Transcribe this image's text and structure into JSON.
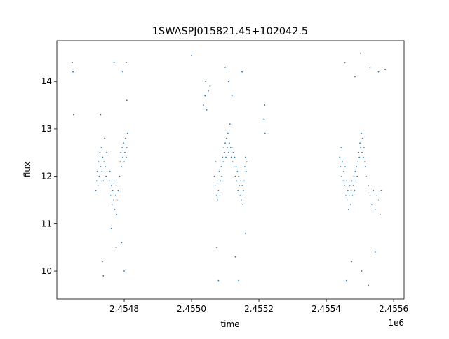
{
  "chart_data": {
    "type": "scatter",
    "title": "1SWASPJ015821.45+102042.5",
    "xlabel": "time",
    "ylabel": "flux",
    "x_offset_label": "1e6",
    "color": "#1f77b4",
    "xlim": [
      2454600,
      2455631
    ],
    "ylim": [
      9.41,
      14.86
    ],
    "xticks": [
      {
        "value": 2454800,
        "label": "2.4548"
      },
      {
        "value": 2455000,
        "label": "2.4550"
      },
      {
        "value": 2455200,
        "label": "2.4552"
      },
      {
        "value": 2455400,
        "label": "2.4554"
      },
      {
        "value": 2455600,
        "label": "2.4556"
      }
    ],
    "yticks": [
      10,
      11,
      12,
      13,
      14
    ],
    "x": [
      2454646,
      2454648,
      2454650,
      2454716,
      2454718,
      2454720,
      2454722,
      2454724,
      2454726,
      2454728,
      2454730,
      2454732,
      2454734,
      2454736,
      2454738,
      2454740,
      2454742,
      2454744,
      2454746,
      2454748,
      2454730,
      2454735,
      2454738,
      2454756,
      2454758,
      2454760,
      2454762,
      2454764,
      2454766,
      2454768,
      2454770,
      2454772,
      2454774,
      2454776,
      2454778,
      2454780,
      2454782,
      2454770,
      2454762,
      2454776,
      2454786,
      2454788,
      2454790,
      2454792,
      2454794,
      2454796,
      2454798,
      2454800,
      2454802,
      2454804,
      2454806,
      2454808,
      2454810,
      2454796,
      2454806,
      2454800,
      2454792,
      2454808,
      2455000,
      2455035,
      2455040,
      2455045,
      2455050,
      2455055,
      2455042,
      2455068,
      2455070,
      2455072,
      2455074,
      2455076,
      2455078,
      2455080,
      2455082,
      2455084,
      2455086,
      2455088,
      2455090,
      2455092,
      2455094,
      2455096,
      2455098,
      2455100,
      2455102,
      2455104,
      2455106,
      2455108,
      2455110,
      2455112,
      2455114,
      2455116,
      2455118,
      2455120,
      2455122,
      2455124,
      2455126,
      2455128,
      2455130,
      2455132,
      2455134,
      2455136,
      2455138,
      2455140,
      2455142,
      2455144,
      2455146,
      2455148,
      2455150,
      2455152,
      2455154,
      2455156,
      2455158,
      2455160,
      2455162,
      2455164,
      2455075,
      2455080,
      2455100,
      2455110,
      2455120,
      2455130,
      2455140,
      2455150,
      2455160,
      2455215,
      2455217,
      2455218,
      2455440,
      2455442,
      2455444,
      2455446,
      2455448,
      2455450,
      2455452,
      2455454,
      2455456,
      2455458,
      2455460,
      2455462,
      2455464,
      2455466,
      2455468,
      2455470,
      2455472,
      2455474,
      2455476,
      2455478,
      2455480,
      2455482,
      2455484,
      2455486,
      2455488,
      2455490,
      2455492,
      2455494,
      2455496,
      2455498,
      2455500,
      2455502,
      2455504,
      2455506,
      2455508,
      2455510,
      2455512,
      2455514,
      2455516,
      2455518,
      2455525,
      2455530,
      2455535,
      2455540,
      2455545,
      2455550,
      2455555,
      2455560,
      2455563,
      2455455,
      2455460,
      2455475,
      2455485,
      2455501,
      2455505,
      2455525,
      2455530,
      2455545,
      2455555,
      2455575
    ],
    "values": [
      14.4,
      14.2,
      13.3,
      11.7,
      11.9,
      12.1,
      11.8,
      12.3,
      12.0,
      12.5,
      12.2,
      12.6,
      12.1,
      12.4,
      11.9,
      12.3,
      12.8,
      12.2,
      12.0,
      12.5,
      13.3,
      10.2,
      9.9,
      11.9,
      12.1,
      11.6,
      11.8,
      11.4,
      11.7,
      11.5,
      11.9,
      11.3,
      11.6,
      11.8,
      11.2,
      11.5,
      11.7,
      14.4,
      10.9,
      10.5,
      12.0,
      12.3,
      12.5,
      12.2,
      12.6,
      12.4,
      12.7,
      12.3,
      12.5,
      12.8,
      12.4,
      12.6,
      12.9,
      14.2,
      14.4,
      10.0,
      10.6,
      13.6,
      14.55,
      13.5,
      13.7,
      13.4,
      13.8,
      13.9,
      14.0,
      12.0,
      11.8,
      12.3,
      11.6,
      11.9,
      11.5,
      11.7,
      12.1,
      11.6,
      11.9,
      12.2,
      12.0,
      12.4,
      12.3,
      12.6,
      12.5,
      12.7,
      12.4,
      12.8,
      12.6,
      12.9,
      12.5,
      12.7,
      13.1,
      12.6,
      12.4,
      12.6,
      12.3,
      12.5,
      12.2,
      12.4,
      12.0,
      12.2,
      11.9,
      12.1,
      11.7,
      12.0,
      11.8,
      11.6,
      11.9,
      11.5,
      11.8,
      11.4,
      11.7,
      11.9,
      12.2,
      12.4,
      12.1,
      12.3,
      10.5,
      9.8,
      14.3,
      14.0,
      13.7,
      10.3,
      9.8,
      14.2,
      10.8,
      13.2,
      13.5,
      12.9,
      12.4,
      12.2,
      12.6,
      12.0,
      12.3,
      11.9,
      12.1,
      11.8,
      12.2,
      11.6,
      11.9,
      11.5,
      11.7,
      11.3,
      11.6,
      11.8,
      11.4,
      11.7,
      11.9,
      11.6,
      11.8,
      12.0,
      11.7,
      12.1,
      11.9,
      12.2,
      12.0,
      12.3,
      12.5,
      12.4,
      12.7,
      12.6,
      12.9,
      12.5,
      12.8,
      12.4,
      12.6,
      12.3,
      12.2,
      12.0,
      11.8,
      11.6,
      11.4,
      11.7,
      11.3,
      11.6,
      11.5,
      11.2,
      11.7,
      14.4,
      9.8,
      10.2,
      14.1,
      14.6,
      10.0,
      9.7,
      14.3,
      10.4,
      14.2,
      14.25
    ]
  }
}
